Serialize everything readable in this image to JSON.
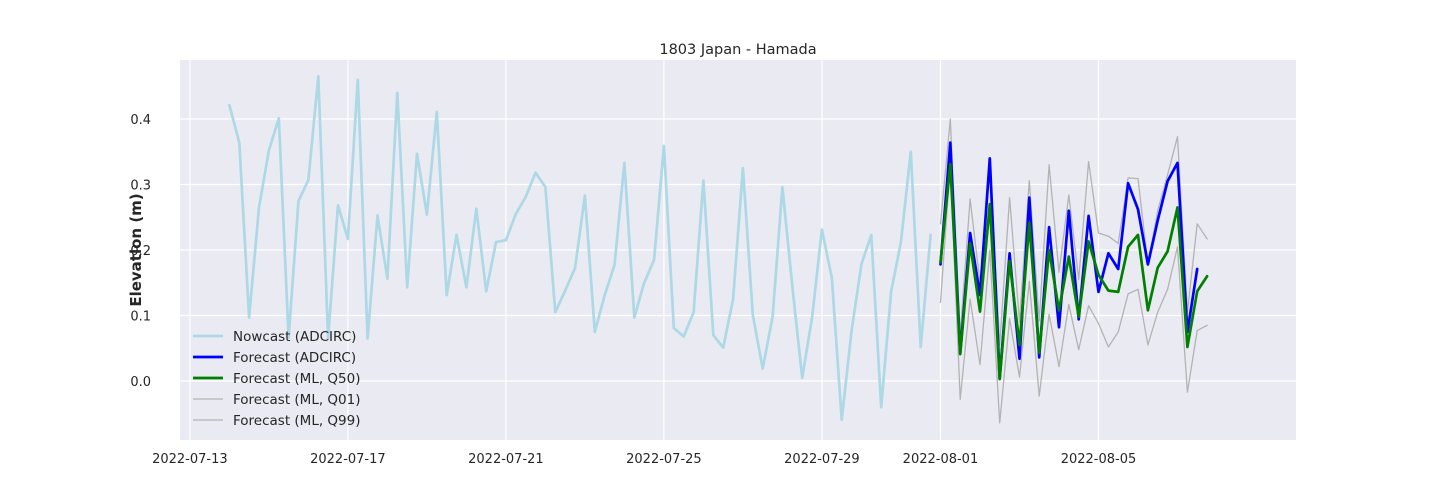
{
  "chart_data": {
    "type": "line",
    "title": "1803 Japan - Hamada",
    "xlabel": "",
    "ylabel": "Elevation (m)",
    "x_axis_type": "date",
    "xlim": [
      "2022-07-12T18:00",
      "2022-08-10T00:00"
    ],
    "ylim": [
      -0.09,
      0.49
    ],
    "x_ticks": [
      {
        "value": "2022-07-13T00:00",
        "label": "2022-07-13"
      },
      {
        "value": "2022-07-17T00:00",
        "label": "2022-07-17"
      },
      {
        "value": "2022-07-21T00:00",
        "label": "2022-07-21"
      },
      {
        "value": "2022-07-25T00:00",
        "label": "2022-07-25"
      },
      {
        "value": "2022-07-29T00:00",
        "label": "2022-07-29"
      },
      {
        "value": "2022-08-01T00:00",
        "label": "2022-08-01"
      },
      {
        "value": "2022-08-05T00:00",
        "label": "2022-08-05"
      }
    ],
    "y_ticks": [
      {
        "value": 0.0,
        "label": "0.0"
      },
      {
        "value": 0.1,
        "label": "0.1"
      },
      {
        "value": 0.2,
        "label": "0.2"
      },
      {
        "value": 0.3,
        "label": "0.3"
      },
      {
        "value": 0.4,
        "label": "0.4"
      }
    ],
    "grid": true,
    "legend_position": "lower-left",
    "background": "#eaeaf2",
    "series": [
      {
        "name": "Nowcast (ADCIRC)",
        "color": "#add8e6",
        "width": 2.7,
        "points": [
          [
            "2022-07-14T00:00",
            0.421
          ],
          [
            "2022-07-14T06:00",
            0.364
          ],
          [
            "2022-07-14T12:00",
            0.097
          ],
          [
            "2022-07-14T18:00",
            0.265
          ],
          [
            "2022-07-15T00:00",
            0.352
          ],
          [
            "2022-07-15T06:00",
            0.401
          ],
          [
            "2022-07-15T12:00",
            0.066
          ],
          [
            "2022-07-15T18:00",
            0.275
          ],
          [
            "2022-07-16T00:00",
            0.307
          ],
          [
            "2022-07-16T06:00",
            0.465
          ],
          [
            "2022-07-16T12:00",
            0.065
          ],
          [
            "2022-07-16T18:00",
            0.268
          ],
          [
            "2022-07-17T00:00",
            0.217
          ],
          [
            "2022-07-17T06:00",
            0.46
          ],
          [
            "2022-07-17T12:00",
            0.065
          ],
          [
            "2022-07-17T18:00",
            0.253
          ],
          [
            "2022-07-18T00:00",
            0.156
          ],
          [
            "2022-07-18T06:00",
            0.44
          ],
          [
            "2022-07-18T12:00",
            0.143
          ],
          [
            "2022-07-18T18:00",
            0.347
          ],
          [
            "2022-07-19T00:00",
            0.254
          ],
          [
            "2022-07-19T06:00",
            0.411
          ],
          [
            "2022-07-19T12:00",
            0.131
          ],
          [
            "2022-07-19T18:00",
            0.223
          ],
          [
            "2022-07-20T00:00",
            0.143
          ],
          [
            "2022-07-20T06:00",
            0.263
          ],
          [
            "2022-07-20T12:00",
            0.137
          ],
          [
            "2022-07-20T18:00",
            0.212
          ],
          [
            "2022-07-21T00:00",
            0.215
          ],
          [
            "2022-07-21T06:00",
            0.255
          ],
          [
            "2022-07-21T12:00",
            0.281
          ],
          [
            "2022-07-21T18:00",
            0.318
          ],
          [
            "2022-07-22T00:00",
            0.296
          ],
          [
            "2022-07-22T06:00",
            0.105
          ],
          [
            "2022-07-22T12:00",
            0.138
          ],
          [
            "2022-07-22T18:00",
            0.172
          ],
          [
            "2022-07-23T00:00",
            0.283
          ],
          [
            "2022-07-23T06:00",
            0.075
          ],
          [
            "2022-07-23T12:00",
            0.131
          ],
          [
            "2022-07-23T18:00",
            0.177
          ],
          [
            "2022-07-24T00:00",
            0.333
          ],
          [
            "2022-07-24T06:00",
            0.097
          ],
          [
            "2022-07-24T12:00",
            0.15
          ],
          [
            "2022-07-24T18:00",
            0.185
          ],
          [
            "2022-07-25T00:00",
            0.359
          ],
          [
            "2022-07-25T06:00",
            0.081
          ],
          [
            "2022-07-25T12:00",
            0.068
          ],
          [
            "2022-07-25T18:00",
            0.105
          ],
          [
            "2022-07-26T00:00",
            0.306
          ],
          [
            "2022-07-26T06:00",
            0.07
          ],
          [
            "2022-07-26T12:00",
            0.051
          ],
          [
            "2022-07-26T18:00",
            0.125
          ],
          [
            "2022-07-27T00:00",
            0.325
          ],
          [
            "2022-07-27T06:00",
            0.101
          ],
          [
            "2022-07-27T12:00",
            0.019
          ],
          [
            "2022-07-27T18:00",
            0.098
          ],
          [
            "2022-07-28T00:00",
            0.296
          ],
          [
            "2022-07-28T06:00",
            0.145
          ],
          [
            "2022-07-28T12:00",
            0.005
          ],
          [
            "2022-07-28T18:00",
            0.097
          ],
          [
            "2022-07-29T00:00",
            0.231
          ],
          [
            "2022-07-29T06:00",
            0.158
          ],
          [
            "2022-07-29T12:00",
            -0.059
          ],
          [
            "2022-07-29T18:00",
            0.077
          ],
          [
            "2022-07-30T00:00",
            0.179
          ],
          [
            "2022-07-30T06:00",
            0.223
          ],
          [
            "2022-07-30T12:00",
            -0.04
          ],
          [
            "2022-07-30T18:00",
            0.136
          ],
          [
            "2022-07-31T00:00",
            0.213
          ],
          [
            "2022-07-31T06:00",
            0.35
          ],
          [
            "2022-07-31T12:00",
            0.052
          ],
          [
            "2022-07-31T18:00",
            0.223
          ]
        ]
      },
      {
        "name": "Forecast (ADCIRC)",
        "color": "#0000ff",
        "width": 2.7,
        "points": [
          [
            "2022-08-01T00:00",
            0.178
          ],
          [
            "2022-08-01T06:00",
            0.364
          ],
          [
            "2022-08-01T12:00",
            0.042
          ],
          [
            "2022-08-01T18:00",
            0.226
          ],
          [
            "2022-08-02T00:00",
            0.131
          ],
          [
            "2022-08-02T06:00",
            0.34
          ],
          [
            "2022-08-02T12:00",
            0.004
          ],
          [
            "2022-08-02T18:00",
            0.195
          ],
          [
            "2022-08-03T00:00",
            0.034
          ],
          [
            "2022-08-03T06:00",
            0.28
          ],
          [
            "2022-08-03T12:00",
            0.036
          ],
          [
            "2022-08-03T18:00",
            0.235
          ],
          [
            "2022-08-04T00:00",
            0.082
          ],
          [
            "2022-08-04T06:00",
            0.26
          ],
          [
            "2022-08-04T12:00",
            0.094
          ],
          [
            "2022-08-04T18:00",
            0.252
          ],
          [
            "2022-08-05T00:00",
            0.136
          ],
          [
            "2022-08-05T06:00",
            0.195
          ],
          [
            "2022-08-05T12:00",
            0.171
          ],
          [
            "2022-08-05T18:00",
            0.302
          ],
          [
            "2022-08-06T00:00",
            0.262
          ],
          [
            "2022-08-06T06:00",
            0.178
          ],
          [
            "2022-08-06T12:00",
            0.245
          ],
          [
            "2022-08-06T18:00",
            0.305
          ],
          [
            "2022-08-07T00:00",
            0.333
          ],
          [
            "2022-08-07T06:00",
            0.075
          ],
          [
            "2022-08-07T12:00",
            0.171
          ]
        ]
      },
      {
        "name": "Forecast (ML, Q50)",
        "color": "#008000",
        "width": 2.7,
        "points": [
          [
            "2022-08-01T00:00",
            0.181
          ],
          [
            "2022-08-01T06:00",
            0.331
          ],
          [
            "2022-08-01T12:00",
            0.041
          ],
          [
            "2022-08-01T18:00",
            0.21
          ],
          [
            "2022-08-02T00:00",
            0.106
          ],
          [
            "2022-08-02T06:00",
            0.27
          ],
          [
            "2022-08-02T12:00",
            0.003
          ],
          [
            "2022-08-02T18:00",
            0.183
          ],
          [
            "2022-08-03T00:00",
            0.055
          ],
          [
            "2022-08-03T06:00",
            0.241
          ],
          [
            "2022-08-03T12:00",
            0.043
          ],
          [
            "2022-08-03T18:00",
            0.2
          ],
          [
            "2022-08-04T00:00",
            0.108
          ],
          [
            "2022-08-04T06:00",
            0.19
          ],
          [
            "2022-08-04T12:00",
            0.098
          ],
          [
            "2022-08-04T18:00",
            0.213
          ],
          [
            "2022-08-05T00:00",
            0.162
          ],
          [
            "2022-08-05T06:00",
            0.138
          ],
          [
            "2022-08-05T12:00",
            0.136
          ],
          [
            "2022-08-05T18:00",
            0.205
          ],
          [
            "2022-08-06T00:00",
            0.223
          ],
          [
            "2022-08-06T06:00",
            0.108
          ],
          [
            "2022-08-06T12:00",
            0.173
          ],
          [
            "2022-08-06T18:00",
            0.198
          ],
          [
            "2022-08-07T00:00",
            0.265
          ],
          [
            "2022-08-07T06:00",
            0.052
          ],
          [
            "2022-08-07T12:00",
            0.137
          ],
          [
            "2022-08-07T18:00",
            0.16
          ]
        ]
      },
      {
        "name": "Forecast (ML, Q01)",
        "color": "#b3b3b3",
        "width": 1.3,
        "points": [
          [
            "2022-08-01T00:00",
            0.12
          ],
          [
            "2022-08-01T06:00",
            0.33
          ],
          [
            "2022-08-01T12:00",
            -0.028
          ],
          [
            "2022-08-01T18:00",
            0.125
          ],
          [
            "2022-08-02T00:00",
            0.025
          ],
          [
            "2022-08-02T06:00",
            0.2
          ],
          [
            "2022-08-02T12:00",
            -0.064
          ],
          [
            "2022-08-02T18:00",
            0.095
          ],
          [
            "2022-08-03T00:00",
            0.006
          ],
          [
            "2022-08-03T06:00",
            0.152
          ],
          [
            "2022-08-03T12:00",
            -0.023
          ],
          [
            "2022-08-03T18:00",
            0.102
          ],
          [
            "2022-08-04T00:00",
            0.022
          ],
          [
            "2022-08-04T06:00",
            0.117
          ],
          [
            "2022-08-04T12:00",
            0.048
          ],
          [
            "2022-08-04T18:00",
            0.115
          ],
          [
            "2022-08-05T00:00",
            0.088
          ],
          [
            "2022-08-05T06:00",
            0.052
          ],
          [
            "2022-08-05T12:00",
            0.075
          ],
          [
            "2022-08-05T18:00",
            0.133
          ],
          [
            "2022-08-06T00:00",
            0.14
          ],
          [
            "2022-08-06T06:00",
            0.055
          ],
          [
            "2022-08-06T12:00",
            0.105
          ],
          [
            "2022-08-06T18:00",
            0.14
          ],
          [
            "2022-08-07T00:00",
            0.205
          ],
          [
            "2022-08-07T06:00",
            -0.017
          ],
          [
            "2022-08-07T12:00",
            0.077
          ],
          [
            "2022-08-07T18:00",
            0.085
          ]
        ]
      },
      {
        "name": "Forecast (ML, Q99)",
        "color": "#b3b3b3",
        "width": 1.3,
        "points": [
          [
            "2022-08-01T00:00",
            0.24
          ],
          [
            "2022-08-01T06:00",
            0.4
          ],
          [
            "2022-08-01T12:00",
            0.07
          ],
          [
            "2022-08-01T18:00",
            0.278
          ],
          [
            "2022-08-02T00:00",
            0.15
          ],
          [
            "2022-08-02T06:00",
            0.327
          ],
          [
            "2022-08-02T12:00",
            0.055
          ],
          [
            "2022-08-02T18:00",
            0.28
          ],
          [
            "2022-08-03T00:00",
            0.09
          ],
          [
            "2022-08-03T06:00",
            0.306
          ],
          [
            "2022-08-03T12:00",
            0.092
          ],
          [
            "2022-08-03T18:00",
            0.33
          ],
          [
            "2022-08-04T00:00",
            0.166
          ],
          [
            "2022-08-04T06:00",
            0.284
          ],
          [
            "2022-08-04T12:00",
            0.155
          ],
          [
            "2022-08-04T18:00",
            0.335
          ],
          [
            "2022-08-05T00:00",
            0.226
          ],
          [
            "2022-08-05T06:00",
            0.221
          ],
          [
            "2022-08-05T12:00",
            0.21
          ],
          [
            "2022-08-05T18:00",
            0.31
          ],
          [
            "2022-08-06T00:00",
            0.309
          ],
          [
            "2022-08-06T06:00",
            0.178
          ],
          [
            "2022-08-06T12:00",
            0.26
          ],
          [
            "2022-08-06T18:00",
            0.315
          ],
          [
            "2022-08-07T00:00",
            0.373
          ],
          [
            "2022-08-07T06:00",
            0.105
          ],
          [
            "2022-08-07T12:00",
            0.24
          ],
          [
            "2022-08-07T18:00",
            0.217
          ]
        ]
      }
    ]
  }
}
